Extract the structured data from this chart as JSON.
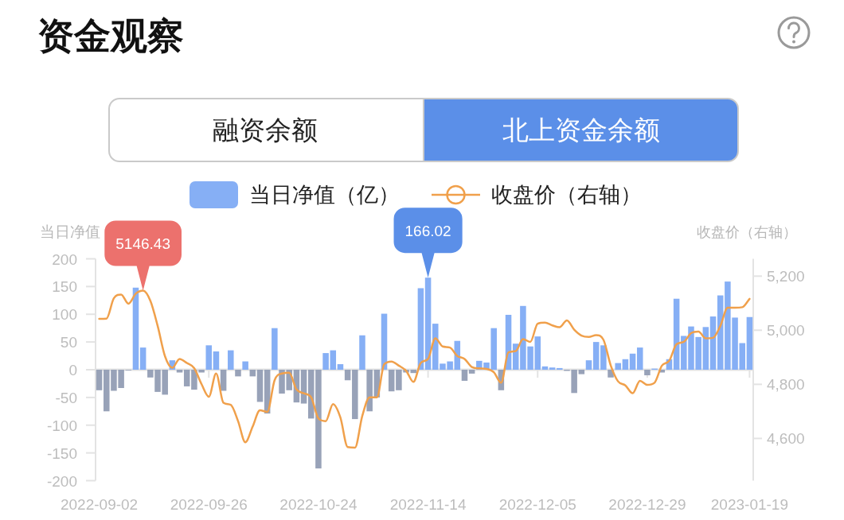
{
  "chart_data": {
    "type": "bar",
    "title": "资金观察",
    "annotations": [
      "融资余额",
      "北上资金余额"
    ],
    "ylabel": "当日净值",
    "y2label": "收盘价（右轴）",
    "legend": "top",
    "categories": [
      "2022-09-02",
      null,
      null,
      null,
      null,
      null,
      null,
      null,
      null,
      null,
      null,
      null,
      null,
      null,
      null,
      "2022-09-26",
      null,
      null,
      null,
      null,
      null,
      null,
      null,
      null,
      null,
      null,
      null,
      null,
      null,
      null,
      "2022-10-24",
      null,
      null,
      null,
      null,
      null,
      null,
      null,
      null,
      null,
      null,
      null,
      null,
      null,
      null,
      "2022-11-14",
      null,
      null,
      null,
      null,
      null,
      null,
      null,
      null,
      null,
      null,
      null,
      null,
      null,
      null,
      "2022-12-05",
      null,
      null,
      null,
      null,
      null,
      null,
      null,
      null,
      null,
      null,
      null,
      null,
      null,
      null,
      "2022-12-29",
      null,
      null,
      null,
      null,
      null,
      null,
      null,
      null,
      null,
      null,
      null,
      null,
      null,
      "2023-01-19"
    ],
    "ylim": [
      -200,
      200
    ],
    "yticks": [
      -200,
      -150,
      -100,
      -50,
      0,
      50,
      100,
      150,
      200
    ],
    "y2lim": [
      4444,
      5264
    ],
    "y2ticks": [
      {
        "value": 4600,
        "label": "4,600"
      },
      {
        "value": 4800,
        "label": "4,800"
      },
      {
        "value": 5000,
        "label": "5,000"
      },
      {
        "value": 5200,
        "label": "5,200"
      }
    ],
    "series": [
      {
        "name": "当日净值（亿）",
        "color": "#86aff5",
        "values": [
          -37,
          -75,
          -38,
          -33,
          -1,
          148,
          40,
          -14,
          -40,
          -45,
          17,
          -5,
          -30,
          -36,
          -5,
          44,
          33,
          -38,
          35,
          -12,
          15,
          -12,
          -58,
          -79,
          75,
          -43,
          -37,
          -59,
          -61,
          -88,
          -178,
          30,
          35,
          10,
          -19,
          -89,
          62,
          -75,
          -50,
          101,
          -39,
          -37,
          -5,
          -6,
          147,
          166.02,
          83,
          11,
          15,
          52,
          -20,
          -7,
          16,
          13,
          75,
          -37,
          99,
          47,
          115,
          42,
          60,
          6,
          4,
          3,
          -2,
          -42,
          -8,
          17,
          50,
          44,
          -14,
          12,
          19,
          29,
          40,
          -10,
          2,
          -5,
          19,
          128,
          61,
          78,
          59,
          77,
          96,
          134,
          159,
          94,
          48,
          95
        ],
        "colors": [
          "#98a2b8",
          "#98a2b8",
          "#98a2b8",
          "#98a2b8",
          "#98a2b8",
          "#86aff5",
          "#86aff5",
          "#98a2b8",
          "#98a2b8",
          "#98a2b8",
          "#86aff5",
          "#98a2b8",
          "#98a2b8",
          "#98a2b8",
          "#98a2b8",
          "#86aff5",
          "#86aff5",
          "#98a2b8",
          "#86aff5",
          "#98a2b8",
          "#86aff5",
          "#98a2b8",
          "#98a2b8",
          "#98a2b8",
          "#86aff5",
          "#98a2b8",
          "#98a2b8",
          "#98a2b8",
          "#98a2b8",
          "#98a2b8",
          "#98a2b8",
          "#86aff5",
          "#86aff5",
          "#86aff5",
          "#98a2b8",
          "#98a2b8",
          "#86aff5",
          "#98a2b8",
          "#98a2b8",
          "#86aff5",
          "#98a2b8",
          "#98a2b8",
          "#98a2b8",
          "#98a2b8",
          "#86aff5",
          "#86aff5",
          "#86aff5",
          "#86aff5",
          "#86aff5",
          "#86aff5",
          "#98a2b8",
          "#98a2b8",
          "#86aff5",
          "#86aff5",
          "#86aff5",
          "#98a2b8",
          "#86aff5",
          "#86aff5",
          "#86aff5",
          "#86aff5",
          "#86aff5",
          "#86aff5",
          "#86aff5",
          "#86aff5",
          "#98a2b8",
          "#98a2b8",
          "#98a2b8",
          "#86aff5",
          "#86aff5",
          "#86aff5",
          "#98a2b8",
          "#86aff5",
          "#86aff5",
          "#86aff5",
          "#86aff5",
          "#98a2b8",
          "#86aff5",
          "#98a2b8",
          "#86aff5",
          "#86aff5",
          "#86aff5",
          "#86aff5",
          "#86aff5",
          "#86aff5",
          "#86aff5",
          "#86aff5",
          "#86aff5",
          "#86aff5",
          "#86aff5",
          "#86aff5"
        ],
        "value_labels": [
          null,
          null,
          null,
          null,
          null,
          null,
          null,
          null,
          null,
          null,
          null,
          null,
          null,
          null,
          null,
          null,
          null,
          null,
          null,
          null,
          null,
          null,
          null,
          null,
          null,
          null,
          null,
          null,
          null,
          null,
          null,
          null,
          null,
          null,
          null,
          null,
          null,
          null,
          null,
          null,
          null,
          null,
          null,
          null,
          null,
          "166.02",
          null,
          null,
          null,
          null,
          null,
          null,
          null,
          null,
          null,
          null,
          null,
          null,
          null,
          null,
          null,
          null,
          null,
          null,
          null,
          null,
          null,
          null,
          null,
          null,
          null,
          null,
          null,
          null,
          null,
          null,
          null,
          null,
          null,
          null,
          null,
          null,
          null,
          null,
          null,
          null,
          null,
          null,
          null,
          null
        ]
      },
      {
        "name": "收盘价（右轴）",
        "type": "line",
        "axis": "y2",
        "color": "#f0a04b",
        "values": [
          5042,
          5043,
          5118,
          5132,
          5098,
          5135,
          5146.43,
          5109,
          5016,
          4904,
          4861,
          4894,
          4879,
          4860,
          4801,
          4754,
          4840,
          4732,
          4724,
          4664,
          4586,
          4644,
          4704,
          4698,
          4815,
          4840,
          4843,
          4781,
          4767,
          4752,
          4674,
          4664,
          4727,
          4678,
          4568,
          4566,
          4683,
          4752,
          4752,
          4874,
          4884,
          4869,
          4850,
          4809,
          4879,
          4894,
          4970,
          4940,
          4936,
          4905,
          4894,
          4864,
          4859,
          4857,
          4845,
          4806,
          4918,
          4923,
          4967,
          4957,
          5024,
          5028,
          5018,
          5011,
          5036,
          5002,
          4980,
          4975,
          4982,
          4965,
          4870,
          4811,
          4796,
          4767,
          4813,
          4798,
          4806,
          4869,
          4887,
          4948,
          4957,
          4989,
          4995,
          4970,
          4972,
          5016,
          5083,
          5083,
          5085,
          5116
        ],
        "value_labels": [
          null,
          null,
          null,
          null,
          null,
          null,
          "5146.43",
          null,
          null,
          null,
          null,
          null,
          null,
          null,
          null,
          null,
          null,
          null,
          null,
          null,
          null,
          null,
          null,
          null,
          null,
          null,
          null,
          null,
          null,
          null,
          null,
          null,
          null,
          null,
          null,
          null,
          null,
          null,
          null,
          null,
          null,
          null,
          null,
          null,
          null,
          null,
          null,
          null,
          null,
          null,
          null,
          null,
          null,
          null,
          null,
          null,
          null,
          null,
          null,
          null,
          null,
          null,
          null,
          null,
          null,
          null,
          null,
          null,
          null,
          null,
          null,
          null,
          null,
          null,
          null,
          null,
          null,
          null,
          null,
          null,
          null,
          null,
          null,
          null,
          null,
          null,
          null,
          null,
          null,
          null
        ]
      }
    ]
  }
}
